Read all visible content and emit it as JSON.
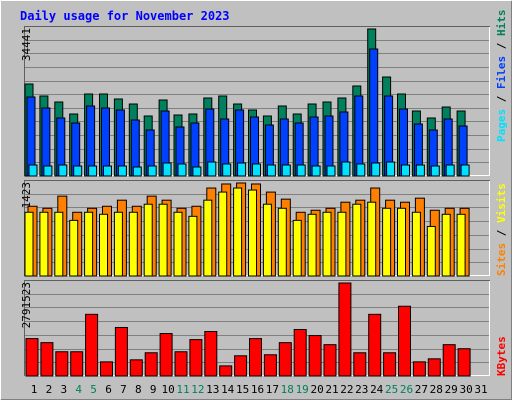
{
  "chart_data": [
    {
      "type": "bar",
      "title": "Daily usage for November 2023",
      "ylim": [
        0,
        34441
      ],
      "yticks": [
        34441
      ],
      "legend_separator": " / ",
      "series": [
        {
          "name": "Hits",
          "color": "#00805c",
          "values": [
            21555,
            18743,
            17337,
            14526,
            19212,
            19212,
            18040,
            16869,
            14058,
            17806,
            14292,
            14526,
            18275,
            18743,
            16869,
            15463,
            14058,
            16400,
            14526,
            16869,
            17337,
            18275,
            21086,
            34441,
            23195,
            19212,
            15229,
            13589,
            16166,
            15229,
            null
          ]
        },
        {
          "name": "Files",
          "color": "#0040ff",
          "values": [
            18509,
            15932,
            13589,
            12418,
            16400,
            15932,
            15463,
            13120,
            10777,
            15229,
            11480,
            12418,
            15698,
            13355,
            15463,
            13823,
            11949,
            13355,
            12418,
            13823,
            14058,
            14995,
            18743,
            29755,
            18743,
            15698,
            12183,
            10777,
            13355,
            11715,
            null
          ]
        },
        {
          "name": "Pages",
          "color": "#00e0ff",
          "values": [
            2577,
            2343,
            2577,
            2343,
            2343,
            2343,
            2343,
            2109,
            2343,
            3046,
            2812,
            2109,
            3280,
            2812,
            3046,
            2812,
            2577,
            2577,
            2577,
            2343,
            2343,
            3280,
            2812,
            3046,
            3280,
            2577,
            2577,
            2343,
            2577,
            2577,
            null
          ]
        }
      ]
    },
    {
      "type": "bar",
      "ylim": [
        0,
        1423
      ],
      "yticks": [
        1423
      ],
      "legend_separator": " / ",
      "series": [
        {
          "name": "Sites",
          "color": "#ff8000",
          "values": [
            1067,
            1036,
            1222,
            975,
            1036,
            1067,
            1160,
            1067,
            1222,
            1160,
            1036,
            1067,
            1346,
            1408,
            1423,
            1408,
            1284,
            1176,
            975,
            1006,
            1036,
            1129,
            1160,
            1346,
            1160,
            1129,
            1191,
            1006,
            1036,
            1036,
            null
          ]
        },
        {
          "name": "Visits",
          "color": "#ffff00",
          "values": [
            975,
            975,
            975,
            851,
            975,
            944,
            975,
            975,
            1098,
            1098,
            975,
            913,
            1160,
            1284,
            1346,
            1315,
            1098,
            1036,
            851,
            944,
            975,
            975,
            1098,
            1129,
            1036,
            1036,
            975,
            758,
            944,
            944,
            null
          ]
        }
      ]
    },
    {
      "type": "bar",
      "ylim": [
        0,
        2791523
      ],
      "yticks": [
        2791523
      ],
      "categories": [
        "1",
        "2",
        "3",
        "4",
        "5",
        "6",
        "7",
        "8",
        "9",
        "10",
        "11",
        "12",
        "13",
        "14",
        "15",
        "16",
        "17",
        "18",
        "19",
        "20",
        "21",
        "22",
        "23",
        "24",
        "25",
        "26",
        "27",
        "28",
        "29",
        "30",
        "31"
      ],
      "weekend_indices": [
        3,
        4,
        10,
        11,
        17,
        18,
        24,
        25
      ],
      "weekend_color": "#00805c",
      "series": [
        {
          "name": "KBytes",
          "color": "#ff0000",
          "values": [
            1122691,
            1001319,
            728232,
            728232,
            1850923,
            424802,
            1456464,
            485488,
            697889,
            1274406,
            728232,
            1092348,
            1335092,
            303430,
            606860,
            1122691,
            637203,
            1001319,
            1395778,
            1213720,
            940633,
            2791523,
            697889,
            1850923,
            697889,
            2093667,
            424802,
            515831,
            940633,
            819261,
            null
          ]
        }
      ]
    }
  ]
}
